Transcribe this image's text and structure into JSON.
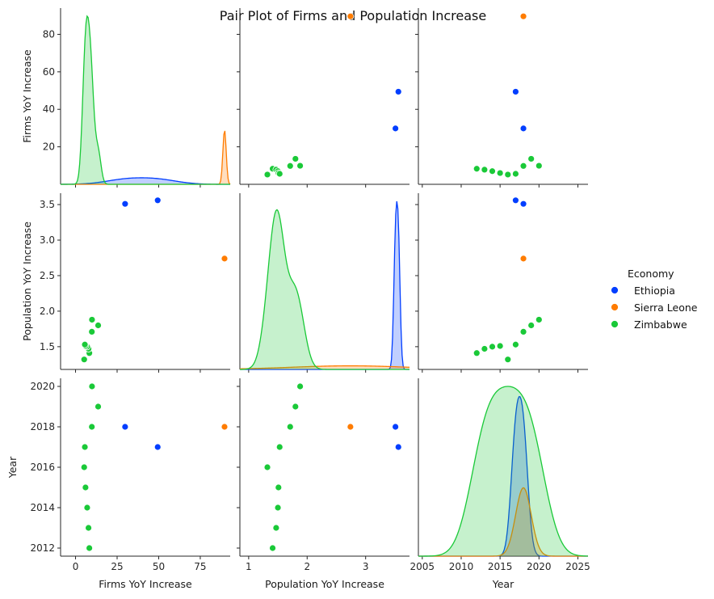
{
  "chart_data": {
    "type": "scatter",
    "title": "Pair Plot of Firms and Population Increase",
    "variables": [
      "Firms YoY Increase",
      "Population YoY Increase",
      "Year"
    ],
    "legend": {
      "title": "Economy",
      "placement": "right",
      "entries": [
        "Ethiopia",
        "Sierra Leone",
        "Zimbabwe"
      ]
    },
    "colors": {
      "Ethiopia": "#023eff",
      "Sierra Leone": "#ff7c00",
      "Zimbabwe": "#1ac938"
    },
    "axes": {
      "Firms YoY Increase": {
        "range": [
          -9,
          93
        ],
        "ticks": [
          0,
          25,
          50,
          75
        ],
        "tick_labels": [
          "0",
          "25",
          "50",
          "75"
        ],
        "row_ticks": [
          20,
          40,
          60,
          80
        ],
        "row_tick_labels": [
          "20",
          "40",
          "60",
          "80"
        ],
        "row_range": [
          0,
          94
        ]
      },
      "Population YoY Increase": {
        "range": [
          0.85,
          3.75
        ],
        "ticks": [
          1,
          2,
          3
        ],
        "tick_labels": [
          "1",
          "2",
          "3"
        ],
        "row_ticks": [
          1.5,
          2.0,
          2.5,
          3.0,
          3.5
        ],
        "row_tick_labels": [
          "1.5",
          "2.0",
          "2.5",
          "3.0",
          "3.5"
        ],
        "row_range": [
          1.18,
          3.66
        ]
      },
      "Year": {
        "range": [
          2004.5,
          2026.3
        ],
        "ticks": [
          2005,
          2010,
          2015,
          2020,
          2025
        ],
        "tick_labels": [
          "2005",
          "2010",
          "2015",
          "2020",
          "2025"
        ],
        "row_ticks": [
          2012,
          2014,
          2016,
          2018,
          2020
        ],
        "row_tick_labels": [
          "2012",
          "2014",
          "2016",
          "2018",
          "2020"
        ],
        "row_range": [
          2011.6,
          2020.4
        ]
      }
    },
    "points": [
      {
        "economy": "Ethiopia",
        "firms": 49.4,
        "population": 3.56,
        "year": 2017
      },
      {
        "economy": "Ethiopia",
        "firms": 29.8,
        "population": 3.51,
        "year": 2018
      },
      {
        "economy": "Sierra Leone",
        "firms": 89.6,
        "population": 2.74,
        "year": 2018
      },
      {
        "economy": "Zimbabwe",
        "firms": 8.3,
        "population": 1.41,
        "year": 2012
      },
      {
        "economy": "Zimbabwe",
        "firms": 7.8,
        "population": 1.47,
        "year": 2013
      },
      {
        "economy": "Zimbabwe",
        "firms": 7.0,
        "population": 1.5,
        "year": 2014
      },
      {
        "economy": "Zimbabwe",
        "firms": 6.0,
        "population": 1.51,
        "year": 2015
      },
      {
        "economy": "Zimbabwe",
        "firms": 5.2,
        "population": 1.32,
        "year": 2016
      },
      {
        "economy": "Zimbabwe",
        "firms": 5.6,
        "population": 1.53,
        "year": 2017
      },
      {
        "economy": "Zimbabwe",
        "firms": 9.8,
        "population": 1.71,
        "year": 2018
      },
      {
        "economy": "Zimbabwe",
        "firms": 13.6,
        "population": 1.8,
        "year": 2019
      },
      {
        "economy": "Zimbabwe",
        "firms": 9.9,
        "population": 1.88,
        "year": 2020
      }
    ],
    "diagonal": "kde"
  }
}
